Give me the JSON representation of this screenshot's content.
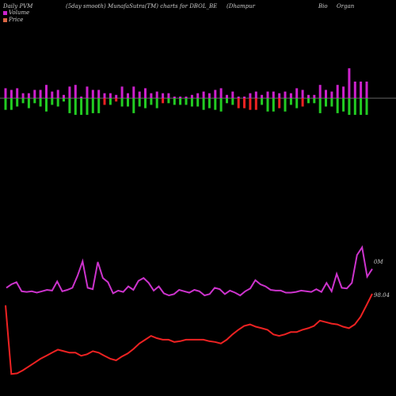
{
  "header": {
    "left": "Daily PVM",
    "center": "(5day smooth) MunafaSutra(TM) charts for DBOL_BE",
    "right1": "(Dhampur",
    "right2": "Bio",
    "right3": "Organ"
  },
  "legend": {
    "volume_label": "Volume",
    "price_label": "Price",
    "volume_color": "#cc22cc",
    "price_color": "#dd6644"
  },
  "chart_data": {
    "type": "bar",
    "title": "(5day smooth) MunafaSutra(TM) charts for DBOL_BE",
    "volume_bars": {
      "up_color": "#cc22cc",
      "down_colors": {
        "green": "#22cc22",
        "red": "#ee2222"
      },
      "top": [
        6,
        5,
        6,
        3,
        3,
        5,
        5,
        8,
        4,
        5,
        2,
        7,
        8,
        1,
        7,
        5,
        5,
        3,
        3,
        2,
        7,
        3,
        7,
        4,
        6,
        3,
        4,
        3,
        3,
        1,
        1,
        1,
        2,
        3,
        4,
        3,
        5,
        6,
        2,
        4,
        1,
        1,
        3,
        4,
        2,
        4,
        4,
        3,
        4,
        3,
        6,
        5,
        2,
        2,
        8,
        5,
        4,
        8,
        7,
        18,
        10,
        10,
        10
      ],
      "bottom": [
        7,
        7,
        5,
        3,
        6,
        3,
        5,
        8,
        4,
        5,
        2,
        9,
        10,
        10,
        10,
        9,
        9,
        4,
        4,
        2,
        5,
        5,
        9,
        5,
        6,
        4,
        6,
        3,
        3,
        4,
        4,
        4,
        5,
        5,
        7,
        6,
        7,
        8,
        3,
        4,
        6,
        6,
        7,
        7,
        4,
        8,
        8,
        6,
        8,
        4,
        6,
        5,
        3,
        3,
        9,
        5,
        5,
        9,
        8,
        10,
        10,
        10,
        10
      ],
      "bottom_color": [
        "green",
        "green",
        "green",
        "green",
        "green",
        "green",
        "green",
        "green",
        "green",
        "green",
        "green",
        "green",
        "green",
        "green",
        "green",
        "green",
        "green",
        "red",
        "green",
        "red",
        "green",
        "green",
        "green",
        "green",
        "green",
        "green",
        "green",
        "red",
        "green",
        "green",
        "green",
        "green",
        "green",
        "green",
        "green",
        "green",
        "green",
        "green",
        "green",
        "green",
        "red",
        "red",
        "red",
        "red",
        "green",
        "green",
        "green",
        "red",
        "green",
        "green",
        "green",
        "red",
        "green",
        "green",
        "green",
        "green",
        "green",
        "green",
        "green",
        "green",
        "green",
        "green",
        "green"
      ]
    },
    "volume_line": {
      "name": "Volume",
      "color": "#cc33cc",
      "values": [
        0.28,
        0.33,
        0.36,
        0.23,
        0.22,
        0.23,
        0.21,
        0.23,
        0.25,
        0.24,
        0.37,
        0.23,
        0.25,
        0.28,
        0.45,
        0.66,
        0.28,
        0.26,
        0.65,
        0.42,
        0.36,
        0.2,
        0.24,
        0.22,
        0.3,
        0.25,
        0.38,
        0.42,
        0.35,
        0.24,
        0.3,
        0.2,
        0.17,
        0.19,
        0.25,
        0.23,
        0.21,
        0.25,
        0.23,
        0.17,
        0.19,
        0.28,
        0.26,
        0.19,
        0.24,
        0.21,
        0.17,
        0.23,
        0.27,
        0.39,
        0.33,
        0.3,
        0.25,
        0.24,
        0.24,
        0.21,
        0.21,
        0.22,
        0.24,
        0.23,
        0.22,
        0.26,
        0.22,
        0.35,
        0.23,
        0.48,
        0.28,
        0.27,
        0.35,
        0.75,
        0.86,
        0.44,
        0.55
      ],
      "end_label": "0M"
    },
    "price_line": {
      "name": "Price",
      "color": "#ee2222",
      "values": [
        100,
        10,
        11,
        15,
        20,
        25,
        30,
        34,
        38,
        42,
        40,
        38,
        38,
        34,
        36,
        40,
        38,
        34,
        30,
        28,
        33,
        37,
        43,
        50,
        55,
        60,
        57,
        55,
        55,
        52,
        53,
        55,
        55,
        55,
        55,
        53,
        52,
        50,
        55,
        62,
        68,
        73,
        75,
        72,
        70,
        68,
        62,
        60,
        62,
        65,
        65,
        68,
        70,
        73,
        80,
        78,
        76,
        75,
        72,
        70,
        75,
        85,
        100,
        115
      ],
      "end_label": "98.04"
    }
  }
}
